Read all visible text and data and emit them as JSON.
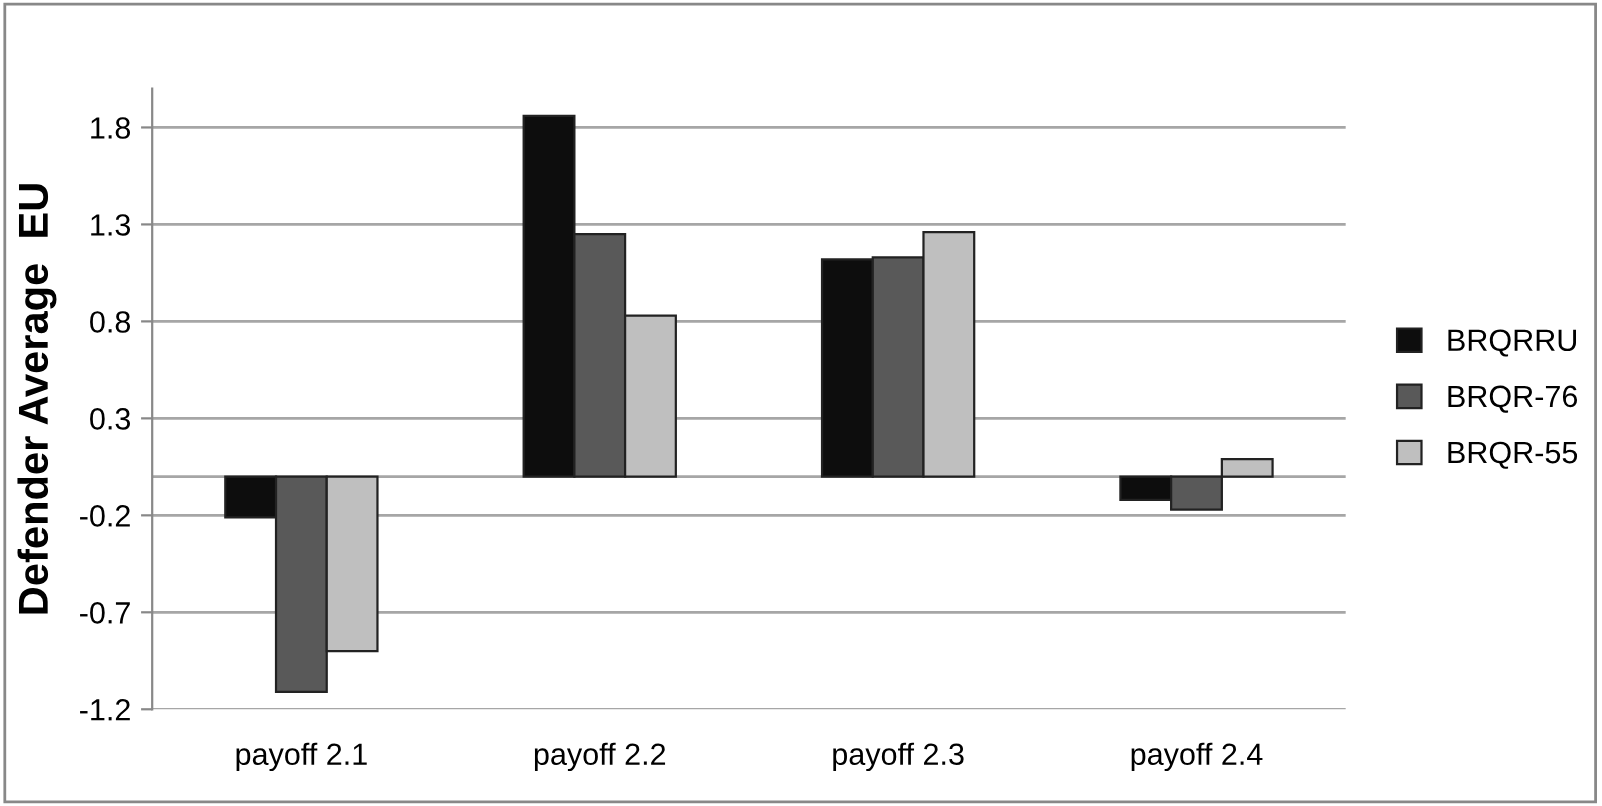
{
  "chart_data": {
    "type": "bar",
    "ylabel": "Defender Average  EU",
    "categories": [
      "payoff 2.1",
      "payoff 2.2",
      "payoff 2.3",
      "payoff 2.4"
    ],
    "series": [
      {
        "name": "BRQRRU",
        "color": "#0d0d0d",
        "values": [
          -0.21,
          1.86,
          1.12,
          -0.12
        ]
      },
      {
        "name": "BRQR-76",
        "color": "#595959",
        "values": [
          -1.11,
          1.25,
          1.13,
          -0.17
        ]
      },
      {
        "name": "BRQR-55",
        "color": "#bfbfbf",
        "values": [
          -0.9,
          0.83,
          1.26,
          0.09
        ]
      }
    ],
    "ylim": [
      -1.2,
      2.0
    ],
    "yticks": [
      -1.2,
      -0.7,
      -0.2,
      0.3,
      0.8,
      1.3,
      1.8
    ],
    "grid": "y",
    "legend": "right"
  }
}
